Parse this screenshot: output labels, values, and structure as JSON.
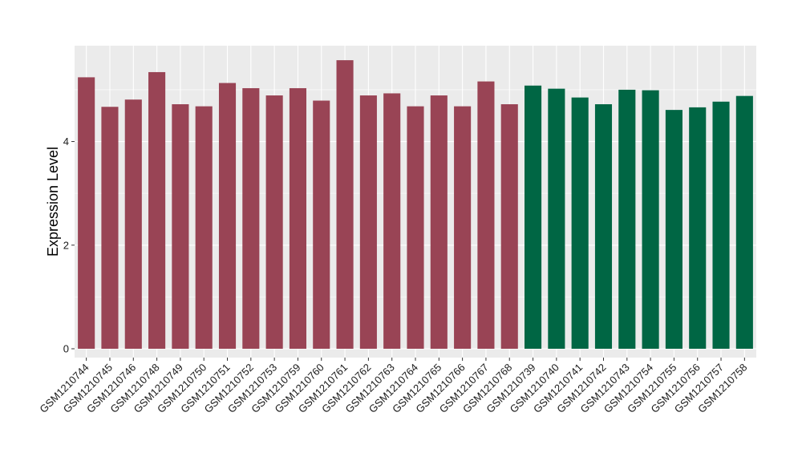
{
  "chart_data": {
    "type": "bar",
    "ylabel": "Expression Level",
    "xlabel": "",
    "title": "",
    "ylim": [
      -0.17,
      5.85
    ],
    "yticks": [
      0,
      2,
      4
    ],
    "grid": true,
    "legend": "none",
    "categories": [
      "GSM1210744",
      "GSM1210745",
      "GSM1210746",
      "GSM1210748",
      "GSM1210749",
      "GSM1210750",
      "GSM1210751",
      "GSM1210752",
      "GSM1210753",
      "GSM1210759",
      "GSM1210760",
      "GSM1210761",
      "GSM1210762",
      "GSM1210763",
      "GSM1210764",
      "GSM1210765",
      "GSM1210766",
      "GSM1210767",
      "GSM1210768",
      "GSM1210739",
      "GSM1210740",
      "GSM1210741",
      "GSM1210742",
      "GSM1210743",
      "GSM1210754",
      "GSM1210755",
      "GSM1210756",
      "GSM1210757",
      "GSM1210758"
    ],
    "values": [
      5.24,
      4.67,
      4.81,
      5.34,
      4.72,
      4.68,
      5.13,
      5.03,
      4.89,
      5.03,
      4.79,
      5.57,
      4.89,
      4.93,
      4.68,
      4.89,
      4.68,
      5.16,
      4.72,
      5.08,
      5.02,
      4.85,
      4.72,
      5.0,
      4.99,
      4.61,
      4.66,
      4.77,
      4.88
    ],
    "colors": [
      "#994455",
      "#994455",
      "#994455",
      "#994455",
      "#994455",
      "#994455",
      "#994455",
      "#994455",
      "#994455",
      "#994455",
      "#994455",
      "#994455",
      "#994455",
      "#994455",
      "#994455",
      "#994455",
      "#994455",
      "#994455",
      "#994455",
      "#006644",
      "#006644",
      "#006644",
      "#006644",
      "#006644",
      "#006644",
      "#006644",
      "#006644",
      "#006644",
      "#006644"
    ],
    "panel_background": "#ebebeb",
    "grid_color": "#ffffff"
  }
}
